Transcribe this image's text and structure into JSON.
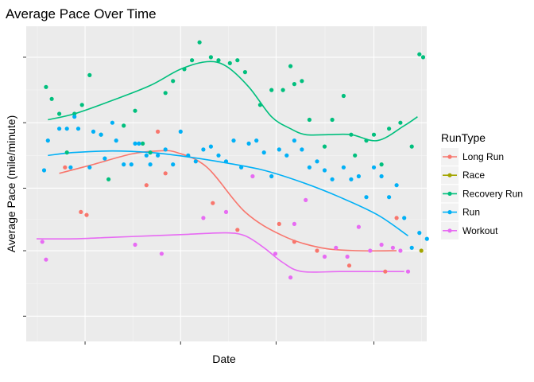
{
  "chart_data": {
    "type": "scatter",
    "title": "Average Pace Over Time",
    "xlabel": "Date",
    "ylabel": "Average Pace (mile/minute)",
    "x_tick_labels_shown": false,
    "y_tick_labels_shown": false,
    "xlim": [
      0,
      100
    ],
    "ylim": [
      0,
      100
    ],
    "x_ticks": [
      12.8,
      38.0,
      63.2,
      89.0
    ],
    "y_ticks": [
      5,
      27,
      48,
      70,
      92
    ],
    "grid": true,
    "background": "#EBEBEB",
    "legend": {
      "title": "RunType",
      "position": "right",
      "entries": [
        "Long Run",
        "Race",
        "Recovery Run",
        "Run",
        "Workout"
      ]
    },
    "colors": {
      "Long Run": "#F8766D",
      "Race": "#A3A500",
      "Recovery Run": "#00BF7D",
      "Run": "#00B0F6",
      "Workout": "#E76BF3"
    },
    "series": [
      {
        "name": "Long Run",
        "points": [
          [
            7.5,
            55
          ],
          [
            11.7,
            40
          ],
          [
            13.2,
            39
          ],
          [
            29.0,
            49
          ],
          [
            32.0,
            67
          ],
          [
            34.0,
            53
          ],
          [
            46.5,
            43
          ],
          [
            53.0,
            34
          ],
          [
            64.0,
            36
          ],
          [
            68.0,
            30
          ],
          [
            74.0,
            27
          ],
          [
            82.5,
            22
          ],
          [
            92.0,
            20
          ],
          [
            95.0,
            38
          ]
        ],
        "smooth": [
          [
            6.0,
            53
          ],
          [
            15,
            56
          ],
          [
            25,
            59.5
          ],
          [
            32,
            60.5
          ],
          [
            37,
            60
          ],
          [
            45,
            55
          ],
          [
            55,
            40
          ],
          [
            65,
            32
          ],
          [
            75,
            28
          ],
          [
            85,
            27
          ],
          [
            95,
            27
          ]
        ]
      },
      {
        "name": "Race",
        "points": [
          [
            101.5,
            27
          ]
        ],
        "smooth": []
      },
      {
        "name": "Recovery Run",
        "points": [
          [
            2.5,
            82
          ],
          [
            4,
            78
          ],
          [
            6,
            73
          ],
          [
            8,
            60
          ],
          [
            10,
            73
          ],
          [
            12,
            76
          ],
          [
            14,
            86
          ],
          [
            17,
            66
          ],
          [
            19,
            51
          ],
          [
            23,
            69
          ],
          [
            26,
            74
          ],
          [
            28,
            63
          ],
          [
            30,
            60
          ],
          [
            34,
            80
          ],
          [
            36,
            84
          ],
          [
            39,
            88
          ],
          [
            41,
            91
          ],
          [
            43,
            97
          ],
          [
            46,
            92
          ],
          [
            48,
            91
          ],
          [
            51,
            90
          ],
          [
            53,
            91
          ],
          [
            55,
            87
          ],
          [
            59,
            76
          ],
          [
            62,
            81
          ],
          [
            65,
            81
          ],
          [
            67,
            89
          ],
          [
            68,
            83
          ],
          [
            70,
            84
          ],
          [
            72,
            71
          ],
          [
            76,
            62
          ],
          [
            78,
            71
          ],
          [
            81,
            79
          ],
          [
            83,
            66
          ],
          [
            84,
            59
          ],
          [
            87,
            64
          ],
          [
            89,
            66
          ],
          [
            91,
            56
          ],
          [
            93,
            68
          ],
          [
            96,
            70
          ],
          [
            99,
            62
          ],
          [
            101,
            93
          ],
          [
            102,
            92
          ]
        ],
        "smooth": [
          [
            3,
            71
          ],
          [
            10,
            73
          ],
          [
            20,
            77.5
          ],
          [
            30,
            82.5
          ],
          [
            38,
            88
          ],
          [
            45,
            90.5
          ],
          [
            50,
            89
          ],
          [
            56,
            82
          ],
          [
            62,
            72
          ],
          [
            67,
            68
          ],
          [
            71,
            66
          ],
          [
            77,
            66
          ],
          [
            83,
            66
          ],
          [
            90,
            64
          ],
          [
            97,
            69
          ],
          [
            100.5,
            72
          ]
        ]
      },
      {
        "name": "Run",
        "points": [
          [
            2,
            54
          ],
          [
            3,
            64
          ],
          [
            6,
            68
          ],
          [
            8,
            68
          ],
          [
            9,
            55
          ],
          [
            10,
            72
          ],
          [
            11,
            68
          ],
          [
            14,
            55
          ],
          [
            15,
            67
          ],
          [
            17,
            66
          ],
          [
            18,
            58
          ],
          [
            20,
            70
          ],
          [
            21,
            64
          ],
          [
            23,
            56
          ],
          [
            25,
            56
          ],
          [
            26,
            63
          ],
          [
            27,
            63
          ],
          [
            29,
            59
          ],
          [
            30,
            56
          ],
          [
            32,
            59
          ],
          [
            34,
            61
          ],
          [
            36,
            56
          ],
          [
            38,
            67
          ],
          [
            40,
            59
          ],
          [
            42,
            57
          ],
          [
            44,
            61
          ],
          [
            46,
            62
          ],
          [
            48,
            59
          ],
          [
            50,
            57
          ],
          [
            52,
            64
          ],
          [
            54,
            55
          ],
          [
            56,
            63
          ],
          [
            58,
            64
          ],
          [
            60,
            60
          ],
          [
            62,
            52
          ],
          [
            64,
            61
          ],
          [
            66,
            59
          ],
          [
            68,
            64
          ],
          [
            70,
            61
          ],
          [
            72,
            55
          ],
          [
            74,
            57
          ],
          [
            76,
            54
          ],
          [
            78,
            51
          ],
          [
            81,
            55
          ],
          [
            83,
            51
          ],
          [
            85,
            52
          ],
          [
            87,
            45
          ],
          [
            89,
            55
          ],
          [
            91,
            52
          ],
          [
            93,
            45
          ],
          [
            95,
            49
          ],
          [
            97,
            38
          ],
          [
            99,
            28
          ],
          [
            101,
            33
          ],
          [
            103,
            31
          ]
        ],
        "smooth": [
          [
            3,
            59
          ],
          [
            10,
            60
          ],
          [
            20,
            60.5
          ],
          [
            30,
            60
          ],
          [
            40,
            58.5
          ],
          [
            50,
            56.5
          ],
          [
            60,
            54
          ],
          [
            70,
            50
          ],
          [
            80,
            45
          ],
          [
            90,
            39
          ],
          [
            98,
            32
          ]
        ]
      },
      {
        "name": "Workout",
        "points": [
          [
            1.5,
            30
          ],
          [
            2.5,
            24
          ],
          [
            26,
            29
          ],
          [
            33,
            26
          ],
          [
            44,
            38
          ],
          [
            50,
            40
          ],
          [
            57,
            52
          ],
          [
            63,
            26
          ],
          [
            67,
            18
          ],
          [
            68,
            36
          ],
          [
            71,
            44
          ],
          [
            76,
            25
          ],
          [
            79,
            28
          ],
          [
            82,
            25
          ],
          [
            85,
            35
          ],
          [
            88,
            27
          ],
          [
            91,
            29
          ],
          [
            94,
            28
          ],
          [
            96,
            27
          ],
          [
            98,
            20
          ]
        ],
        "smooth": [
          [
            0,
            31
          ],
          [
            10,
            31
          ],
          [
            20,
            31.5
          ],
          [
            30,
            32
          ],
          [
            40,
            32.5
          ],
          [
            50,
            33
          ],
          [
            55,
            32
          ],
          [
            60,
            28
          ],
          [
            65,
            23
          ],
          [
            70,
            20
          ],
          [
            80,
            20
          ],
          [
            90,
            20
          ],
          [
            97,
            20
          ]
        ]
      }
    ]
  }
}
